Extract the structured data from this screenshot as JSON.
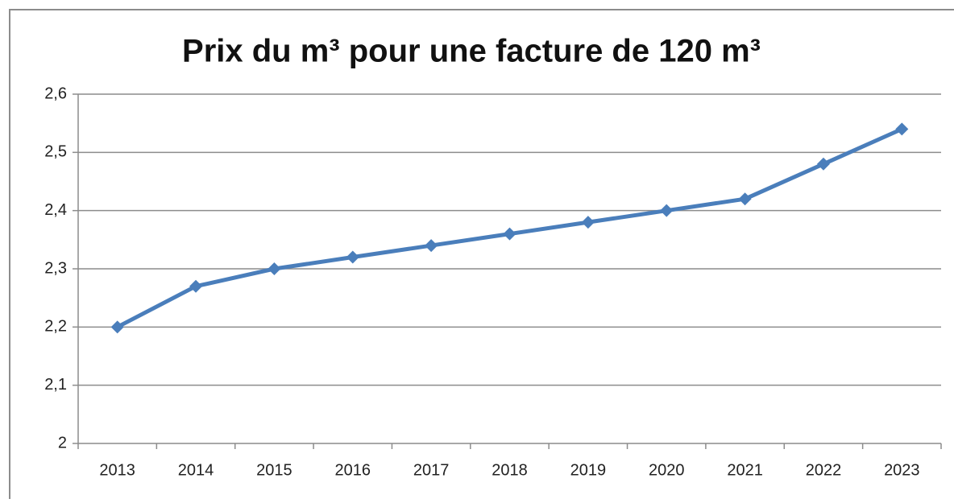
{
  "chart_data": {
    "type": "line",
    "title": "Prix du m³ pour une facture de 120 m³",
    "categories": [
      "2013",
      "2014",
      "2015",
      "2016",
      "2017",
      "2018",
      "2019",
      "2020",
      "2021",
      "2022",
      "2023"
    ],
    "series": [
      {
        "name": "Prix du m³",
        "color": "#4a7ebb",
        "values": [
          2.2,
          2.27,
          2.3,
          2.32,
          2.34,
          2.36,
          2.38,
          2.4,
          2.42,
          2.48,
          2.54
        ]
      }
    ],
    "ylim": [
      2,
      2.6
    ],
    "yticks": [
      2,
      {
        "value": 2.1,
        "label": "2,1"
      },
      {
        "value": 2.2,
        "label": "2,2"
      },
      {
        "value": 2.3,
        "label": "2,3"
      },
      {
        "value": 2.4,
        "label": "2,4"
      },
      {
        "value": 2.5,
        "label": "2,5"
      },
      {
        "value": 2.6,
        "label": "2,6"
      }
    ],
    "grid": true
  }
}
